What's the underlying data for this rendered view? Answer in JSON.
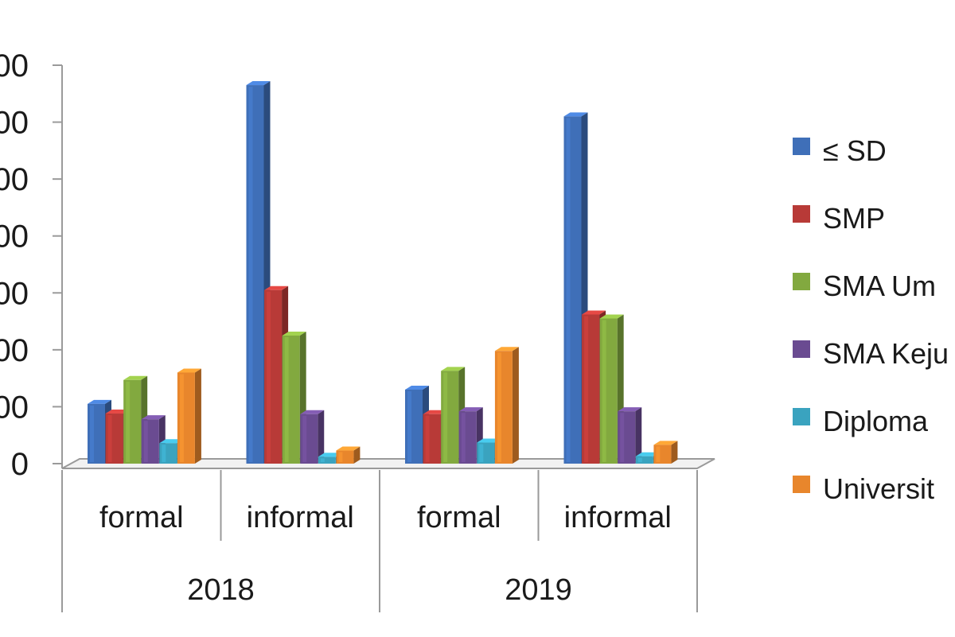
{
  "chart_data": {
    "type": "bar",
    "style": "3d-clustered-column",
    "categories": [
      {
        "label": "formal",
        "group": "2018"
      },
      {
        "label": "informal",
        "group": "2018"
      },
      {
        "label": "formal",
        "group": "2019"
      },
      {
        "label": "informal",
        "group": "2019"
      }
    ],
    "groups": [
      "2018",
      "2019"
    ],
    "y_tick_labels": [
      "00",
      "00",
      "00",
      "00",
      "00",
      "00",
      "00",
      "0"
    ],
    "ylim": [
      0,
      7
    ],
    "gridlines": false,
    "legend_position": "right",
    "series": [
      {
        "name": "≤ SD",
        "color": "#3f6fb8",
        "values": [
          1.05,
          6.65,
          1.3,
          6.1
        ]
      },
      {
        "name": "SMP",
        "color": "#b83a37",
        "values": [
          0.88,
          3.05,
          0.87,
          2.62
        ]
      },
      {
        "name": "SMA Um",
        "color": "#82a93f",
        "values": [
          1.47,
          2.25,
          1.63,
          2.55
        ]
      },
      {
        "name": "SMA Keju",
        "color": "#6a4b91",
        "values": [
          0.78,
          0.87,
          0.92,
          0.92
        ]
      },
      {
        "name": "Diploma",
        "color": "#3aa3bf",
        "values": [
          0.36,
          0.12,
          0.37,
          0.13
        ]
      },
      {
        "name": "Universit",
        "color": "#e8862c",
        "values": [
          1.6,
          0.23,
          1.98,
          0.33
        ]
      }
    ]
  }
}
